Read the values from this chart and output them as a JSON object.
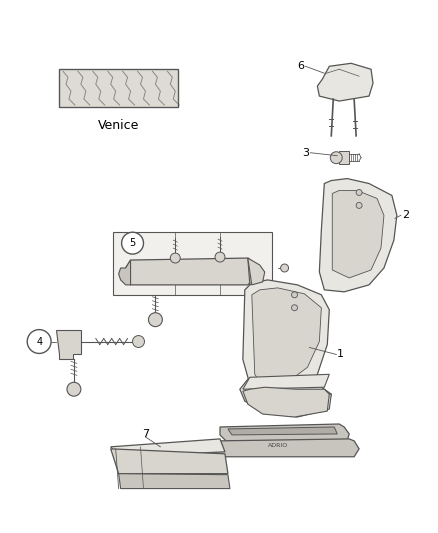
{
  "background_color": "#ffffff",
  "fabric_label": "Venice",
  "line_color": "#555555",
  "fill_light": "#e8e6e0",
  "fill_mid": "#d8d5ce",
  "fill_dark": "#c8c5be",
  "circle_fill": "#ffffff",
  "label_color": "#000000"
}
